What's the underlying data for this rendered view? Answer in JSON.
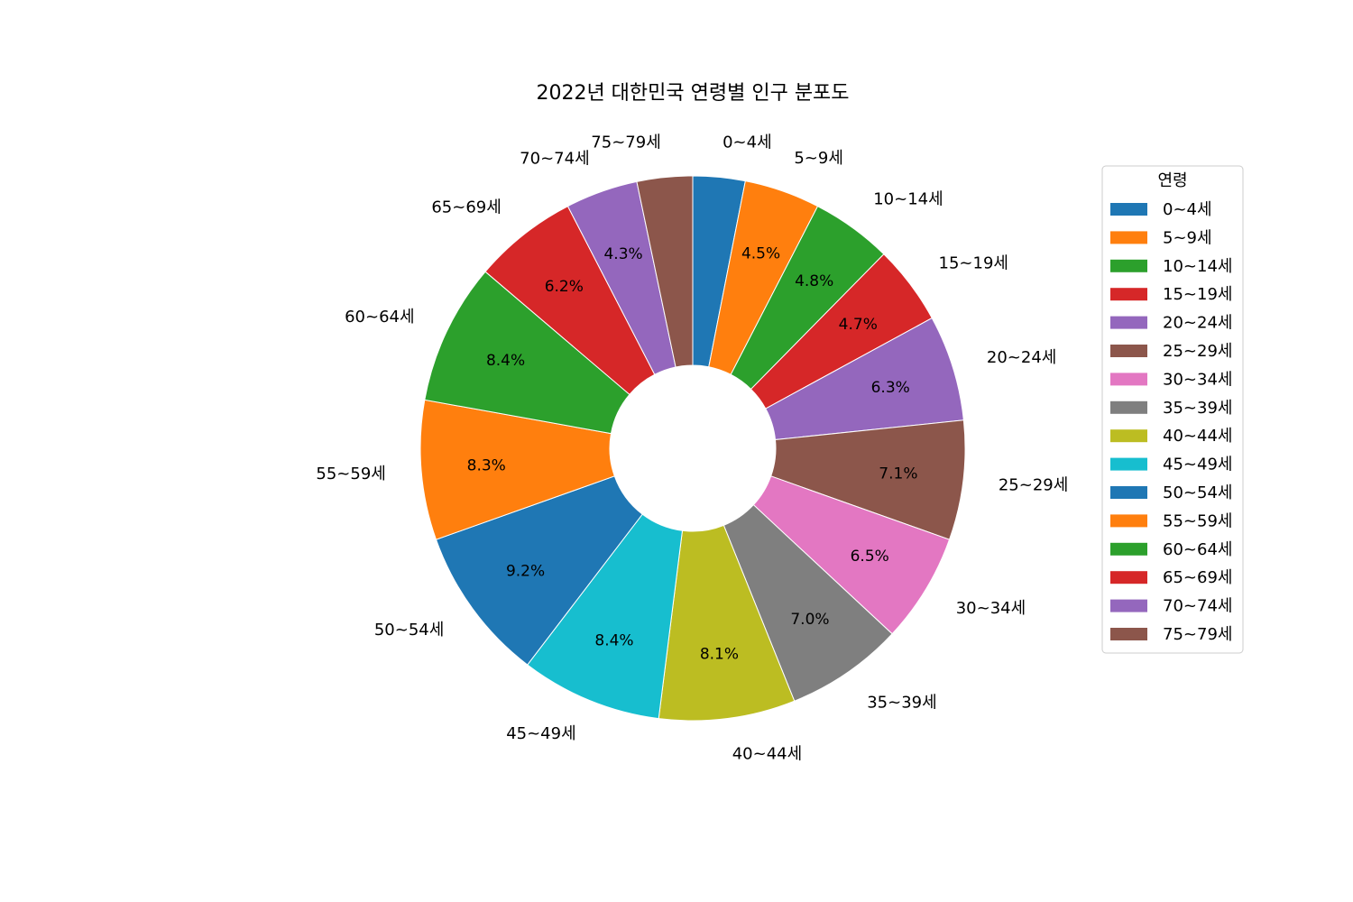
{
  "chart_data": {
    "type": "pie",
    "title": "2022년 대한민국 연령별 인구 분포도",
    "donut": true,
    "start_angle": "12 o'clock",
    "direction": "clockwise",
    "legend": {
      "title": "연령",
      "placement": "right"
    },
    "categories": [
      "0~4세",
      "5~9세",
      "10~14세",
      "15~19세",
      "20~24세",
      "25~29세",
      "30~34세",
      "35~39세",
      "40~44세",
      "45~49세",
      "50~54세",
      "55~59세",
      "60~64세",
      "65~69세",
      "70~74세",
      "75~79세"
    ],
    "values": [
      3.1,
      4.5,
      4.8,
      4.7,
      6.3,
      7.1,
      6.5,
      7.0,
      8.1,
      8.4,
      9.2,
      8.3,
      8.4,
      6.2,
      4.3,
      3.3
    ],
    "value_labels": [
      "",
      "4.5%",
      "4.8%",
      "4.7%",
      "6.3%",
      "7.1%",
      "6.5%",
      "7.0%",
      "8.1%",
      "8.4%",
      "9.2%",
      "8.3%",
      "8.4%",
      "6.2%",
      "4.3%",
      ""
    ],
    "colors": [
      "#1f77b4",
      "#ff7f0e",
      "#2ca02c",
      "#d62728",
      "#9467bd",
      "#8c564b",
      "#e377c2",
      "#7f7f7f",
      "#bcbd22",
      "#17becf",
      "#1f77b4",
      "#ff7f0e",
      "#2ca02c",
      "#d62728",
      "#9467bd",
      "#8c564b"
    ]
  }
}
